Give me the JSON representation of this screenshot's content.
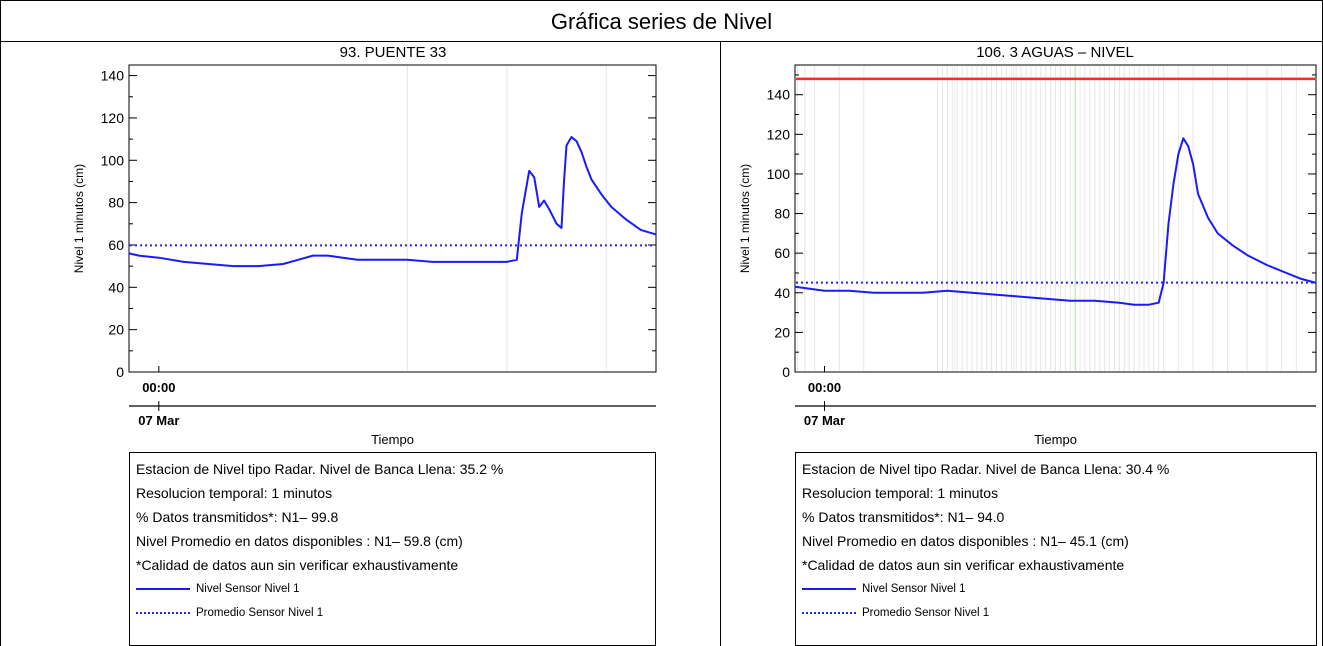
{
  "page": {
    "title": "Gráfica series de Nivel"
  },
  "panels": [
    {
      "id": "p1",
      "chart_title": "93. PUENTE 33",
      "info": [
        "Estacion de Nivel tipo Radar. Nivel de Banca Llena: 35.2 %",
        "Resolucion temporal: 1 minutos",
        "% Datos transmitidos*: N1– 99.8",
        "Nivel Promedio en datos disponibles : N1– 59.8 (cm)",
        "*Calidad de datos aun sin verificar exhaustivamente"
      ],
      "legend": [
        {
          "label": "Nivel Sensor Nivel 1",
          "style": "solid"
        },
        {
          "label": "Promedio Sensor Nivel 1",
          "style": "dotted"
        }
      ]
    },
    {
      "id": "p2",
      "chart_title": "106. 3 AGUAS – NIVEL",
      "info": [
        "Estacion de Nivel tipo Radar. Nivel de Banca Llena: 30.4 %",
        "Resolucion temporal: 1 minutos",
        "% Datos transmitidos*: N1– 94.0",
        "Nivel Promedio en datos disponibles : N1– 45.1 (cm)",
        "*Calidad de datos aun sin verificar exhaustivamente"
      ],
      "legend": [
        {
          "label": "Nivel Sensor Nivel 1",
          "style": "solid"
        },
        {
          "label": "Promedio Sensor Nivel 1",
          "style": "dotted"
        }
      ]
    }
  ],
  "colors": {
    "series": "#1a1aff",
    "mean": "#2323ff",
    "bank_full": "#ff2a1a",
    "gap_lines": "#e6e6e6",
    "gap_green": "#a6e6a6"
  },
  "chart_data": [
    {
      "type": "line",
      "title": "93. PUENTE 33",
      "xlabel": "Tiempo",
      "ylabel": "Nivel 1 minutos (cm)",
      "ylim": [
        0,
        145
      ],
      "yticks": [
        0,
        20,
        40,
        60,
        80,
        100,
        120,
        140
      ],
      "xlim": [
        -0.06,
        1.0
      ],
      "xticks": [
        {
          "x": 0.0,
          "label": "00:00",
          "sublabel": "07 Mar"
        }
      ],
      "grid": false,
      "legend_position": "below plot",
      "series": [
        {
          "name": "Nivel Sensor Nivel 1",
          "style": "solid",
          "x": [
            -0.06,
            -0.04,
            0.0,
            0.05,
            0.1,
            0.15,
            0.2,
            0.25,
            0.28,
            0.31,
            0.34,
            0.37,
            0.4,
            0.45,
            0.5,
            0.55,
            0.6,
            0.65,
            0.7,
            0.72,
            0.73,
            0.745,
            0.755,
            0.765,
            0.775,
            0.785,
            0.8,
            0.81,
            0.815,
            0.82,
            0.83,
            0.84,
            0.85,
            0.86,
            0.87,
            0.89,
            0.91,
            0.94,
            0.97,
            1.0
          ],
          "y": [
            56,
            55,
            54,
            52,
            51,
            50,
            50,
            51,
            53,
            55,
            55,
            54,
            53,
            53,
            53,
            52,
            52,
            52,
            52,
            53,
            75,
            95,
            92,
            78,
            81,
            77,
            70,
            68,
            90,
            107,
            111,
            109,
            104,
            97,
            91,
            84,
            78,
            72,
            67,
            65
          ]
        }
      ],
      "mean_line": {
        "name": "Promedio Sensor Nivel 1",
        "style": "dotted",
        "value": 59.8
      },
      "gaps": [
        0.5,
        0.7,
        0.9
      ]
    },
    {
      "type": "line",
      "title": "106. 3 AGUAS – NIVEL",
      "xlabel": "Tiempo",
      "ylabel": "Nivel 1 minutos (cm)",
      "ylim": [
        0,
        155
      ],
      "yticks": [
        0,
        20,
        40,
        60,
        80,
        100,
        120,
        140
      ],
      "xlim": [
        -0.06,
        1.0
      ],
      "xticks": [
        {
          "x": 0.0,
          "label": "00:00",
          "sublabel": "07 Mar"
        }
      ],
      "grid": false,
      "legend_position": "below plot",
      "series": [
        {
          "name": "Nivel Sensor Nivel 1",
          "style": "solid",
          "x": [
            -0.06,
            -0.03,
            0.0,
            0.05,
            0.1,
            0.15,
            0.2,
            0.25,
            0.3,
            0.35,
            0.4,
            0.45,
            0.5,
            0.55,
            0.6,
            0.63,
            0.66,
            0.68,
            0.69,
            0.7,
            0.71,
            0.72,
            0.73,
            0.74,
            0.75,
            0.76,
            0.78,
            0.8,
            0.83,
            0.86,
            0.9,
            0.94,
            0.97,
            1.0
          ],
          "y": [
            43,
            42,
            41,
            41,
            40,
            40,
            40,
            41,
            40,
            39,
            38,
            37,
            36,
            36,
            35,
            34,
            34,
            35,
            45,
            75,
            95,
            110,
            118,
            114,
            105,
            90,
            78,
            70,
            64,
            59,
            54,
            50,
            47,
            45
          ]
        }
      ],
      "mean_line": {
        "name": "Promedio Sensor Nivel 1",
        "style": "dotted",
        "value": 45.1
      },
      "bank_full_line": {
        "value": 148
      },
      "gaps": [
        -0.055,
        -0.04,
        -0.02,
        0.03,
        0.08,
        0.23,
        0.24,
        0.25,
        0.26,
        0.265,
        0.27,
        0.28,
        0.29,
        0.3,
        0.31,
        0.32,
        0.33,
        0.34,
        0.35,
        0.36,
        0.37,
        0.38,
        0.385,
        0.39,
        0.4,
        0.41,
        0.42,
        0.43,
        0.44,
        0.45,
        0.46,
        0.47,
        0.48,
        0.49,
        0.5,
        0.51,
        0.52,
        0.53,
        0.54,
        0.55,
        0.56,
        0.57,
        0.58,
        0.59,
        0.6,
        0.61,
        0.62,
        0.63,
        0.64,
        0.65,
        0.66,
        0.67,
        0.68,
        0.69,
        0.72,
        0.75,
        0.79,
        0.82,
        0.86,
        0.9,
        0.93,
        0.96
      ],
      "gap_green": [
        0.51
      ]
    }
  ]
}
